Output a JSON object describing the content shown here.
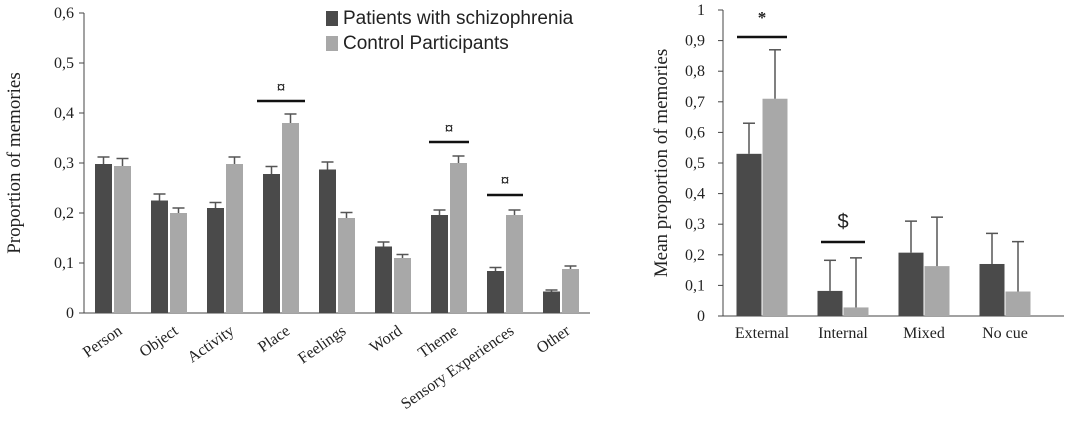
{
  "chart_data": [
    {
      "type": "bar",
      "title": "",
      "xlabel": "",
      "ylabel": "Proportion of memories",
      "ylim": [
        0,
        0.6
      ],
      "yticks": [
        "0",
        "0,1",
        "0,2",
        "0,3",
        "0,4",
        "0,5",
        "0,6"
      ],
      "grid": false,
      "legend_position": "top-center",
      "categories": [
        "Person",
        "Object",
        "Activity",
        "Place",
        "Feelings",
        "Word",
        "Theme",
        "Sensory Experiences",
        "Other"
      ],
      "series": [
        {
          "name": "Patients with schizophrenia",
          "color": "#4a4a4a",
          "values": [
            0.298,
            0.225,
            0.21,
            0.278,
            0.287,
            0.133,
            0.196,
            0.084,
            0.043
          ],
          "errors": [
            0.014,
            0.013,
            0.011,
            0.015,
            0.015,
            0.009,
            0.01,
            0.007,
            0.003
          ]
        },
        {
          "name": "Control Participants",
          "color": "#a8a8a8",
          "values": [
            0.294,
            0.2,
            0.298,
            0.38,
            0.19,
            0.11,
            0.3,
            0.196,
            0.088
          ],
          "errors": [
            0.015,
            0.01,
            0.014,
            0.018,
            0.011,
            0.007,
            0.014,
            0.01,
            0.006
          ]
        }
      ],
      "annotations": [
        {
          "label": "¤",
          "category": "Place"
        },
        {
          "label": "¤",
          "category": "Theme"
        },
        {
          "label": "¤",
          "category": "Sensory Experiences"
        }
      ]
    },
    {
      "type": "bar",
      "title": "",
      "xlabel": "",
      "ylabel": "Mean proportion of memories",
      "ylim": [
        0,
        1
      ],
      "yticks": [
        "0",
        "0,1",
        "0,2",
        "0,3",
        "0,4",
        "0,5",
        "0,6",
        "0,7",
        "0,8",
        "0,9",
        "1"
      ],
      "grid": false,
      "categories": [
        "External",
        "Internal",
        "Mixed",
        "No cue"
      ],
      "series": [
        {
          "name": "Patients with schizophrenia",
          "color": "#4a4a4a",
          "values": [
            0.53,
            0.082,
            0.207,
            0.17
          ],
          "errors": [
            0.1,
            0.1,
            0.103,
            0.1
          ]
        },
        {
          "name": "Control Participants",
          "color": "#a8a8a8",
          "values": [
            0.71,
            0.028,
            0.163,
            0.08
          ],
          "errors": [
            0.16,
            0.162,
            0.16,
            0.163
          ]
        }
      ],
      "annotations": [
        {
          "label": "*",
          "category": "External"
        },
        {
          "label": "$",
          "category": "Internal"
        }
      ]
    }
  ]
}
